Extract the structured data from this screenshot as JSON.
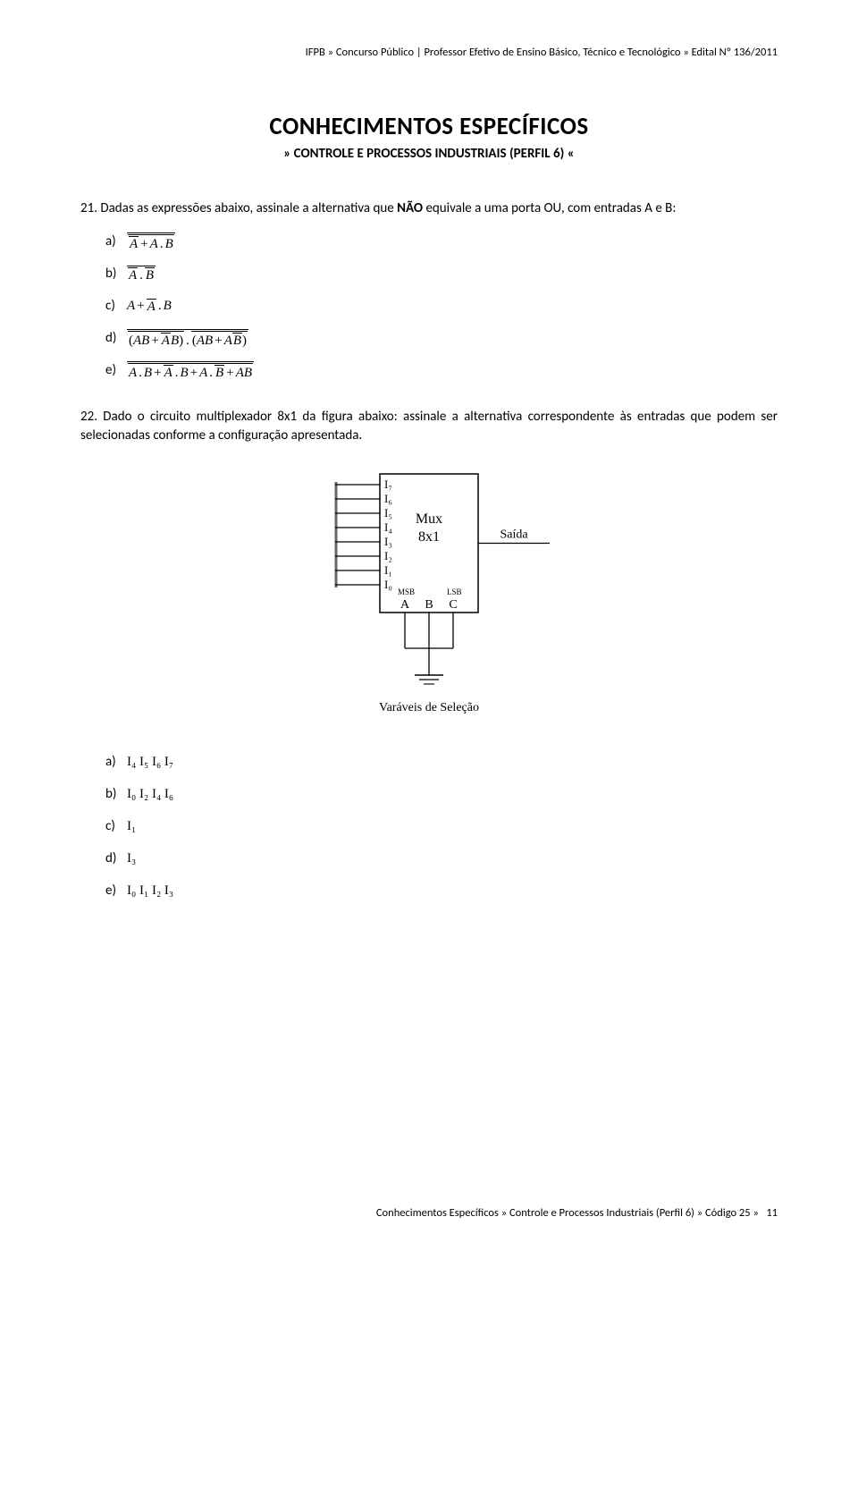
{
  "header": {
    "left": "IFPB",
    "sep1": "»",
    "mid": "Concurso Público | Professor Efetivo de Ensino Básico, Técnico e Tecnológico",
    "sep2": "»",
    "right": "Edital Nº 136/2011"
  },
  "title": "CONHECIMENTOS ESPECÍFICOS",
  "subtitle": "» CONTROLE E PROCESSOS INDUSTRIAIS (PERFIL 6) «",
  "q21": {
    "number": "21.",
    "text_before_bold": " Dadas as expressões abaixo, assinale a alternativa que ",
    "bold": "NÃO",
    "text_after_bold": " equivale a uma porta OU, com entradas A e B:",
    "alt_a": "a)",
    "alt_b": "b)",
    "alt_c": "c)",
    "alt_d": "d)",
    "alt_e": "e)"
  },
  "q22": {
    "number": "22.",
    "text": " Dado o circuito multiplexador 8x1 da figura abaixo: assinale a alternativa correspondente às entradas que podem ser selecionadas conforme a configuração apresentada.",
    "alt_a_label": "a)",
    "alt_a": "I₄ I₅ I₆ I₇",
    "alt_b_label": "b)",
    "alt_b": "I₀ I₂ I₄ I₆",
    "alt_c_label": "c)",
    "alt_c": "I₁",
    "alt_d_label": "d)",
    "alt_d": "I₃",
    "alt_e_label": "e)",
    "alt_e": "I₀ I₁ I₂ I₃"
  },
  "diagram": {
    "inputs": [
      "I₇",
      "I₆",
      "I₅",
      "I₄",
      "I₃",
      "I₂",
      "I₁",
      "I₀"
    ],
    "name1": "Mux",
    "name2": "8x1",
    "msb": "MSB",
    "lsb": "LSB",
    "sels": [
      "A",
      "B",
      "C"
    ],
    "out": "Saída",
    "caption": "Varáveis de Seleção",
    "box_stroke": "#000000",
    "line_stroke": "#000000",
    "text_color": "#000000",
    "font_family": "Times New Roman"
  },
  "footer": {
    "left": "Conhecimentos Específicos",
    "sep1": "»",
    "mid": "Controle e Processos Industriais (Perfil 6)",
    "sep2": "»",
    "code": "Código 25",
    "sep3": "»",
    "page": "11"
  }
}
